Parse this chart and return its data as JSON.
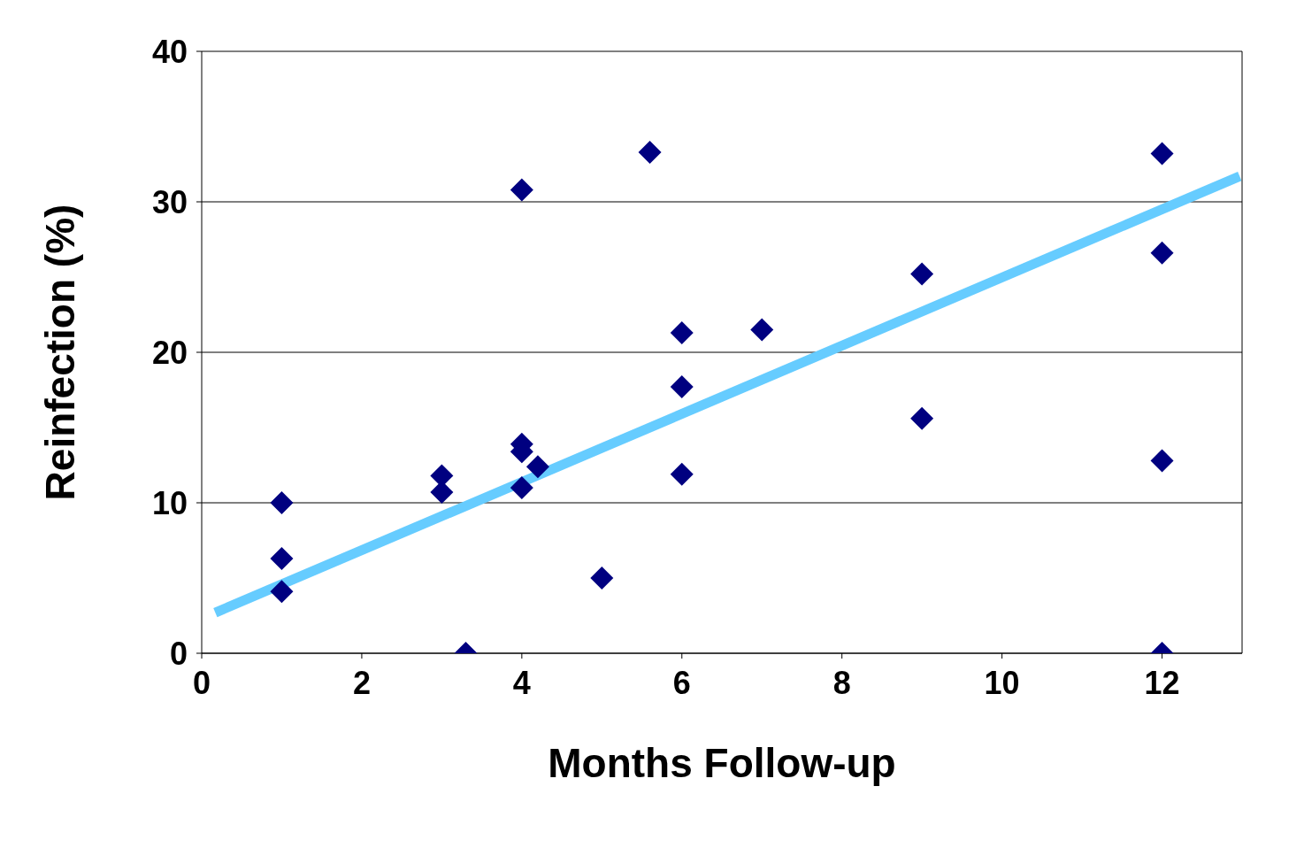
{
  "chart_data": {
    "type": "scatter",
    "xlabel": "Months Follow-up",
    "ylabel": "Reinfection (%)",
    "xlim": [
      0,
      13
    ],
    "xticks": [
      0,
      2,
      4,
      6,
      8,
      10,
      12
    ],
    "ylim": [
      0,
      40
    ],
    "yticks": [
      0,
      10,
      20,
      30,
      40
    ],
    "grid": "y",
    "legend": false,
    "series": [
      {
        "color": "#000080",
        "marker": "diamond",
        "x": [
          1,
          1,
          1,
          3,
          3,
          3.3,
          4,
          4,
          4,
          4.2,
          4,
          5,
          5.6,
          6,
          6,
          6,
          7,
          9,
          9,
          12,
          12,
          12,
          12
        ],
        "values": [
          10,
          6.3,
          4.1,
          11.8,
          10.7,
          0,
          30.8,
          13.9,
          13.4,
          12.4,
          11,
          5,
          33.3,
          21.3,
          17.7,
          11.9,
          21.5,
          25.2,
          15.6,
          33.2,
          26.6,
          12.8,
          0
        ]
      },
      {
        "type": "line",
        "color": "#66ccff",
        "marker": "none",
        "x": [
          0.17,
          12.97
        ],
        "values": [
          2.7,
          31.7
        ]
      }
    ]
  }
}
